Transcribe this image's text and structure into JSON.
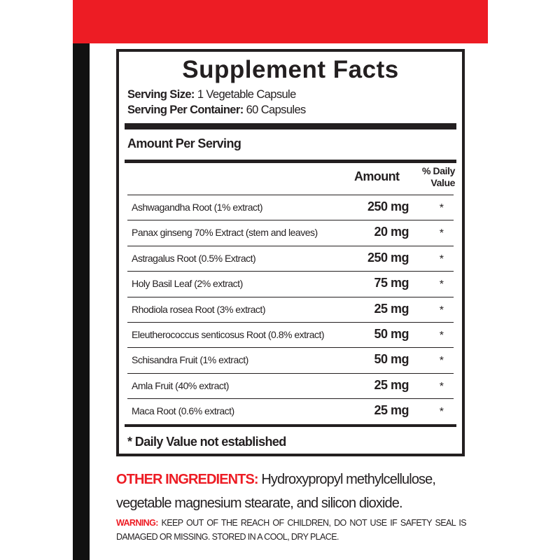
{
  "colors": {
    "accent_red": "#ed1c24",
    "text": "#231f20",
    "side_bar": "#111111"
  },
  "facts": {
    "title": "Supplement Facts",
    "serving_size_label": "Serving Size:",
    "serving_size_value": "1 Vegetable Capsule",
    "servings_label": "Serving Per Container:",
    "servings_value": "60 Capsules",
    "amount_per_serving": "Amount Per Serving",
    "col_amount": "Amount",
    "col_dv_line1": "% Daily",
    "col_dv_line2": "Value",
    "rows": [
      {
        "name": "Ashwagandha Root (1% extract)",
        "amount": "250 mg",
        "dv": "*"
      },
      {
        "name": "Panax ginseng 70% Extract (stem and leaves)",
        "amount": "20 mg",
        "dv": "*"
      },
      {
        "name": "Astragalus Root (0.5% Extract)",
        "amount": "250 mg",
        "dv": "*"
      },
      {
        "name": "Holy Basil Leaf (2% extract)",
        "amount": "75 mg",
        "dv": "*"
      },
      {
        "name": "Rhodiola rosea Root (3% extract)",
        "amount": "25 mg",
        "dv": "*"
      },
      {
        "name": "Eleutherococcus senticosus Root (0.8% extract)",
        "amount": "50 mg",
        "dv": "*"
      },
      {
        "name": "Schisandra Fruit (1% extract)",
        "amount": "50 mg",
        "dv": "*"
      },
      {
        "name": "Amla Fruit (40% extract)",
        "amount": "25 mg",
        "dv": "*"
      },
      {
        "name": "Maca Root (0.6% extract)",
        "amount": "25 mg",
        "dv": "*"
      }
    ],
    "footnote": "* Daily Value not established"
  },
  "other_ingredients": {
    "label": "OTHER INGREDIENTS:",
    "text": " Hydroxypropyl methylcellulose, vegetable magnesium stearate, and silicon dioxide."
  },
  "warning": {
    "label": "WARNING:",
    "text": " KEEP OUT OF THE REACH OF CHILDREN, DO NOT USE IF SAFETY SEAL IS DAMAGED OR MISSING. STORED IN A COOL, DRY PLACE."
  }
}
